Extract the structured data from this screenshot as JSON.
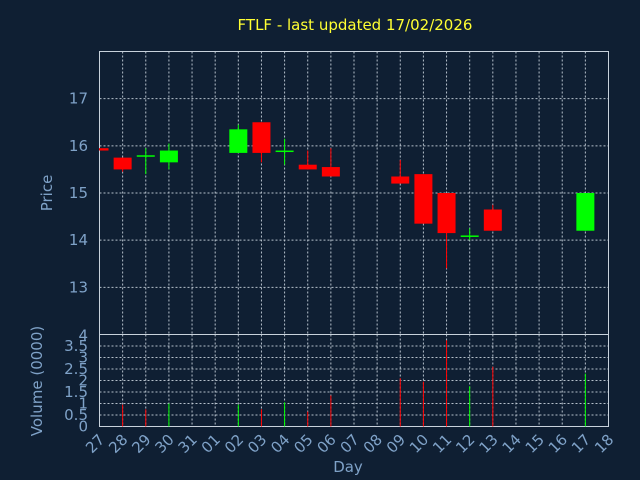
{
  "title": "FTLF - last updated 17/02/2026",
  "colors": {
    "up": "#00ff00",
    "down": "#ff0000",
    "text": "#7fa2c8",
    "title": "#ffff33",
    "background": "#0f1f33"
  },
  "chart_data": [
    {
      "type": "candlestick",
      "ylabel": "Price",
      "ylim": [
        12.0,
        18.0
      ],
      "yticks": [
        13,
        14,
        15,
        16,
        17
      ],
      "grid": true,
      "candles": [
        {
          "day": "27",
          "open": 15.95,
          "close": 15.9,
          "high": 15.95,
          "low": 15.9
        },
        {
          "day": "28",
          "open": 15.75,
          "close": 15.5,
          "high": 15.75,
          "low": 15.45
        },
        {
          "day": "29",
          "open": 15.8,
          "close": 15.8,
          "high": 15.95,
          "low": 15.4
        },
        {
          "day": "30",
          "open": 15.65,
          "close": 15.9,
          "high": 16.05,
          "low": 15.5
        },
        {
          "day": "02",
          "open": 15.85,
          "close": 16.35,
          "high": 16.45,
          "low": 15.85
        },
        {
          "day": "03",
          "open": 16.5,
          "close": 15.85,
          "high": 16.5,
          "low": 15.65
        },
        {
          "day": "04",
          "open": 15.9,
          "close": 15.9,
          "high": 16.15,
          "low": 15.6
        },
        {
          "day": "05",
          "open": 15.6,
          "close": 15.5,
          "high": 15.9,
          "low": 15.5
        },
        {
          "day": "06",
          "open": 15.55,
          "close": 15.35,
          "high": 15.95,
          "low": 15.35
        },
        {
          "day": "09",
          "open": 15.35,
          "close": 15.2,
          "high": 15.7,
          "low": 15.2
        },
        {
          "day": "10",
          "open": 15.4,
          "close": 14.35,
          "high": 15.4,
          "low": 14.35
        },
        {
          "day": "11",
          "open": 15.0,
          "close": 14.15,
          "high": 15.0,
          "low": 13.4
        },
        {
          "day": "12",
          "open": 14.1,
          "close": 14.1,
          "high": 14.25,
          "low": 14.0
        },
        {
          "day": "13",
          "open": 14.65,
          "close": 14.2,
          "high": 14.75,
          "low": 14.2
        },
        {
          "day": "17",
          "open": 14.2,
          "close": 15.0,
          "high": 15.0,
          "low": 14.2
        }
      ]
    },
    {
      "type": "bar",
      "ylabel": "Volume (0000)",
      "xlabel": "Day",
      "ylim": [
        0,
        4
      ],
      "yticks": [
        0,
        0.5,
        1,
        1.5,
        2,
        2.5,
        3,
        3.5
      ],
      "yticklabels": [
        "0",
        "0.5",
        "1",
        "1.5",
        "2",
        "2.5",
        "3",
        "3.5"
      ],
      "top_label": "4",
      "categories": [
        "27",
        "28",
        "29",
        "30",
        "31",
        "01",
        "02",
        "03",
        "04",
        "05",
        "06",
        "07",
        "08",
        "09",
        "10",
        "11",
        "12",
        "13",
        "14",
        "15",
        "16",
        "17",
        "18"
      ],
      "values": [
        {
          "day": "28",
          "volume": 0.95,
          "dir": "down"
        },
        {
          "day": "29",
          "volume": 0.75,
          "dir": "down"
        },
        {
          "day": "30",
          "volume": 1.0,
          "dir": "up"
        },
        {
          "day": "02",
          "volume": 0.95,
          "dir": "up"
        },
        {
          "day": "03",
          "volume": 0.75,
          "dir": "down"
        },
        {
          "day": "04",
          "volume": 1.05,
          "dir": "up"
        },
        {
          "day": "05",
          "volume": 0.65,
          "dir": "down"
        },
        {
          "day": "06",
          "volume": 1.35,
          "dir": "down"
        },
        {
          "day": "09",
          "volume": 2.1,
          "dir": "down"
        },
        {
          "day": "10",
          "volume": 1.95,
          "dir": "down"
        },
        {
          "day": "11",
          "volume": 3.75,
          "dir": "down"
        },
        {
          "day": "12",
          "volume": 1.75,
          "dir": "up"
        },
        {
          "day": "13",
          "volume": 2.6,
          "dir": "down"
        },
        {
          "day": "17",
          "volume": 2.3,
          "dir": "up"
        }
      ]
    }
  ]
}
